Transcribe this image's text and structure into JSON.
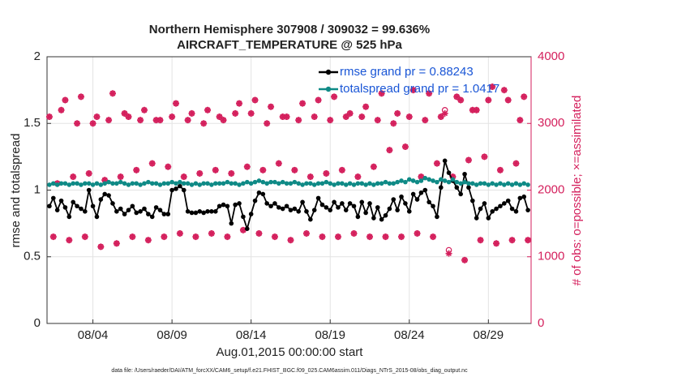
{
  "chart_data": {
    "type": "line",
    "title": [
      "Northern Hemisphere 307908 / 309032 = 99.636%",
      "AIRCRAFT_TEMPERATURE @ 525 hPa"
    ],
    "xlabel": "Aug.01,2015 00:00:00 start",
    "ylabel": "rmse and totalspread",
    "y2label": "# of obs: o=possible; ×=assimilated",
    "footnote": "data file: /Users/raeder/DAI/ATM_forcXX/CAM6_setup/f.e21.FHIST_BGC.f09_025.CAM6assim.011/Diags_NTrS_2015-08/obs_diag_output.nc",
    "xlim": [
      1.1,
      31.7
    ],
    "ylim": [
      0,
      2
    ],
    "y2lim": [
      0,
      4000
    ],
    "xticks": [
      {
        "value": 4,
        "label": "08/04"
      },
      {
        "value": 9,
        "label": "08/09"
      },
      {
        "value": 14,
        "label": "08/14"
      },
      {
        "value": 19,
        "label": "08/19"
      },
      {
        "value": 24,
        "label": "08/24"
      },
      {
        "value": 29,
        "label": "08/29"
      }
    ],
    "yticks": [
      0,
      0.5,
      1,
      1.5,
      2
    ],
    "y2ticks": [
      0,
      1000,
      2000,
      3000,
      4000
    ],
    "grid": true,
    "legend": "upper right",
    "x": [
      1.25,
      1.5,
      1.75,
      2,
      2.25,
      2.5,
      2.75,
      3,
      3.25,
      3.5,
      3.75,
      4,
      4.25,
      4.5,
      4.75,
      5,
      5.25,
      5.5,
      5.75,
      6,
      6.25,
      6.5,
      6.75,
      7,
      7.25,
      7.5,
      7.75,
      8,
      8.25,
      8.5,
      8.75,
      9,
      9.25,
      9.5,
      9.75,
      10,
      10.25,
      10.5,
      10.75,
      11,
      11.25,
      11.5,
      11.75,
      12,
      12.25,
      12.5,
      12.75,
      13,
      13.25,
      13.5,
      13.75,
      14,
      14.25,
      14.5,
      14.75,
      15,
      15.25,
      15.5,
      15.75,
      16,
      16.25,
      16.5,
      16.75,
      17,
      17.25,
      17.5,
      17.75,
      18,
      18.25,
      18.5,
      18.75,
      19,
      19.25,
      19.5,
      19.75,
      20,
      20.25,
      20.5,
      20.75,
      21,
      21.25,
      21.5,
      21.75,
      22,
      22.25,
      22.5,
      22.75,
      23,
      23.25,
      23.5,
      23.75,
      24,
      24.25,
      24.5,
      24.75,
      25,
      25.25,
      25.5,
      25.75,
      26,
      26.25,
      26.5,
      26.75,
      27,
      27.25,
      27.5,
      27.75,
      28,
      28.25,
      28.5,
      28.75,
      29,
      29.25,
      29.5,
      29.75,
      30,
      30.25,
      30.5,
      30.75,
      31,
      31.25,
      31.5
    ],
    "series": [
      {
        "name": "rmse grand pr = 0.88243",
        "color": "#000000",
        "values": [
          0.88,
          0.94,
          0.85,
          0.92,
          0.87,
          0.8,
          0.91,
          0.88,
          0.86,
          0.84,
          1.0,
          0.88,
          0.8,
          0.93,
          0.97,
          0.96,
          0.9,
          0.84,
          0.86,
          0.82,
          0.85,
          0.88,
          0.83,
          0.84,
          0.86,
          0.82,
          0.8,
          0.87,
          0.85,
          0.82,
          0.82,
          1.0,
          1.01,
          1.03,
          1.0,
          0.84,
          0.83,
          0.83,
          0.84,
          0.83,
          0.84,
          0.84,
          0.84,
          0.88,
          0.89,
          0.88,
          0.75,
          0.89,
          0.9,
          0.8,
          0.71,
          0.82,
          0.92,
          0.98,
          0.97,
          0.9,
          0.88,
          0.9,
          0.87,
          0.86,
          0.88,
          0.85,
          0.86,
          0.84,
          0.91,
          0.84,
          0.78,
          0.85,
          0.94,
          0.89,
          0.87,
          0.85,
          0.91,
          0.87,
          0.9,
          0.85,
          0.9,
          0.88,
          0.8,
          0.91,
          0.83,
          0.9,
          0.79,
          0.87,
          0.78,
          0.81,
          0.86,
          0.93,
          0.85,
          0.95,
          0.9,
          0.84,
          0.97,
          0.93,
          0.98,
          1.0,
          0.91,
          0.88,
          0.8,
          1.02,
          1.22,
          1.13,
          1.07,
          1.02,
          0.97,
          1.12,
          1.02,
          0.92,
          0.79,
          0.86,
          0.9,
          0.79,
          0.84,
          0.86,
          0.88,
          0.9,
          0.92,
          0.86,
          0.84,
          0.94,
          0.95,
          0.85
        ]
      },
      {
        "name": "totalspread grand pr = 1.0417",
        "color": "#0f8a86",
        "values": [
          1.04,
          1.05,
          1.04,
          1.05,
          1.05,
          1.04,
          1.05,
          1.05,
          1.04,
          1.05,
          1.05,
          1.04,
          1.05,
          1.04,
          1.05,
          1.06,
          1.05,
          1.05,
          1.06,
          1.05,
          1.04,
          1.05,
          1.05,
          1.04,
          1.05,
          1.06,
          1.05,
          1.05,
          1.04,
          1.05,
          1.05,
          1.06,
          1.05,
          1.06,
          1.05,
          1.05,
          1.04,
          1.05,
          1.04,
          1.05,
          1.05,
          1.04,
          1.05,
          1.05,
          1.05,
          1.06,
          1.05,
          1.05,
          1.04,
          1.05,
          1.06,
          1.05,
          1.06,
          1.07,
          1.06,
          1.05,
          1.06,
          1.06,
          1.05,
          1.06,
          1.05,
          1.05,
          1.06,
          1.05,
          1.04,
          1.05,
          1.05,
          1.04,
          1.05,
          1.05,
          1.06,
          1.05,
          1.04,
          1.05,
          1.05,
          1.04,
          1.05,
          1.04,
          1.05,
          1.05,
          1.04,
          1.05,
          1.04,
          1.05,
          1.05,
          1.06,
          1.05,
          1.05,
          1.06,
          1.07,
          1.06,
          1.08,
          1.07,
          1.06,
          1.07,
          1.09,
          1.08,
          1.07,
          1.06,
          1.08,
          1.07,
          1.06,
          1.08,
          1.06,
          1.05,
          1.06,
          1.05,
          1.05,
          1.04,
          1.05,
          1.05,
          1.04,
          1.05,
          1.04,
          1.05,
          1.04,
          1.05,
          1.04,
          1.05,
          1.04,
          1.05,
          1.04
        ]
      }
    ],
    "obs": {
      "axis": "y2",
      "color": "#d41f5c",
      "possible": [
        3100,
        1300,
        2100,
        3200,
        3350,
        1250,
        2200,
        3000,
        3400,
        1300,
        2250,
        3000,
        3100,
        1150,
        2150,
        3050,
        3450,
        1200,
        2200,
        3150,
        3100,
        1300,
        2300,
        3050,
        3200,
        1250,
        2400,
        3050,
        3050,
        1300,
        2350,
        3100,
        3300,
        1350,
        2200,
        3050,
        3150,
        1300,
        2250,
        3000,
        3200,
        1350,
        2300,
        3100,
        3050,
        1300,
        2250,
        3150,
        3300,
        1400,
        2350,
        3150,
        3350,
        1350,
        2300,
        3000,
        3250,
        1300,
        2400,
        3100,
        3100,
        1250,
        2300,
        3050,
        3300,
        1350,
        2200,
        3100,
        3350,
        1300,
        2250,
        3050,
        3400,
        1300,
        2300,
        3100,
        3150,
        1350,
        2200,
        3100,
        3250,
        1300,
        2350,
        3050,
        3450,
        1300,
        2600,
        3000,
        3150,
        1300,
        2650,
        3100,
        3500,
        1350,
        2200,
        3050,
        3450,
        1300,
        2400,
        3100,
        3200,
        1100,
        2200,
        3400,
        3350,
        950,
        2450,
        3200,
        3200,
        1250,
        2500,
        3350,
        3550,
        1200,
        2300,
        3500,
        3350,
        1250,
        2400,
        3050,
        3400,
        1250
      ],
      "assimilated": [
        3100,
        1300,
        2100,
        3200,
        3350,
        1250,
        2200,
        3000,
        3400,
        1300,
        2250,
        3000,
        3100,
        1150,
        2150,
        3050,
        3450,
        1200,
        2200,
        3150,
        3100,
        1300,
        2300,
        3050,
        3200,
        1250,
        2400,
        3050,
        3050,
        1300,
        2350,
        3100,
        3300,
        1350,
        2200,
        3050,
        3150,
        1300,
        2250,
        3000,
        3200,
        1350,
        2300,
        3100,
        3050,
        1300,
        2250,
        3150,
        3300,
        1400,
        2350,
        3150,
        3350,
        1350,
        2300,
        3000,
        3250,
        1300,
        2400,
        3100,
        3100,
        1250,
        2300,
        3050,
        3300,
        1350,
        2200,
        3100,
        3350,
        1300,
        2250,
        3050,
        3400,
        1300,
        2300,
        3100,
        3150,
        1350,
        2200,
        3100,
        3250,
        1300,
        2350,
        3050,
        3450,
        1300,
        2600,
        3000,
        3150,
        1300,
        2650,
        3100,
        3500,
        1350,
        2200,
        3050,
        3450,
        1300,
        2400,
        3100,
        3150,
        1050,
        2200,
        3400,
        3350,
        950,
        2450,
        3200,
        3200,
        1250,
        2500,
        3350,
        3550,
        1200,
        2300,
        3500,
        3350,
        1250,
        2400,
        3050,
        3400,
        1250
      ]
    }
  }
}
